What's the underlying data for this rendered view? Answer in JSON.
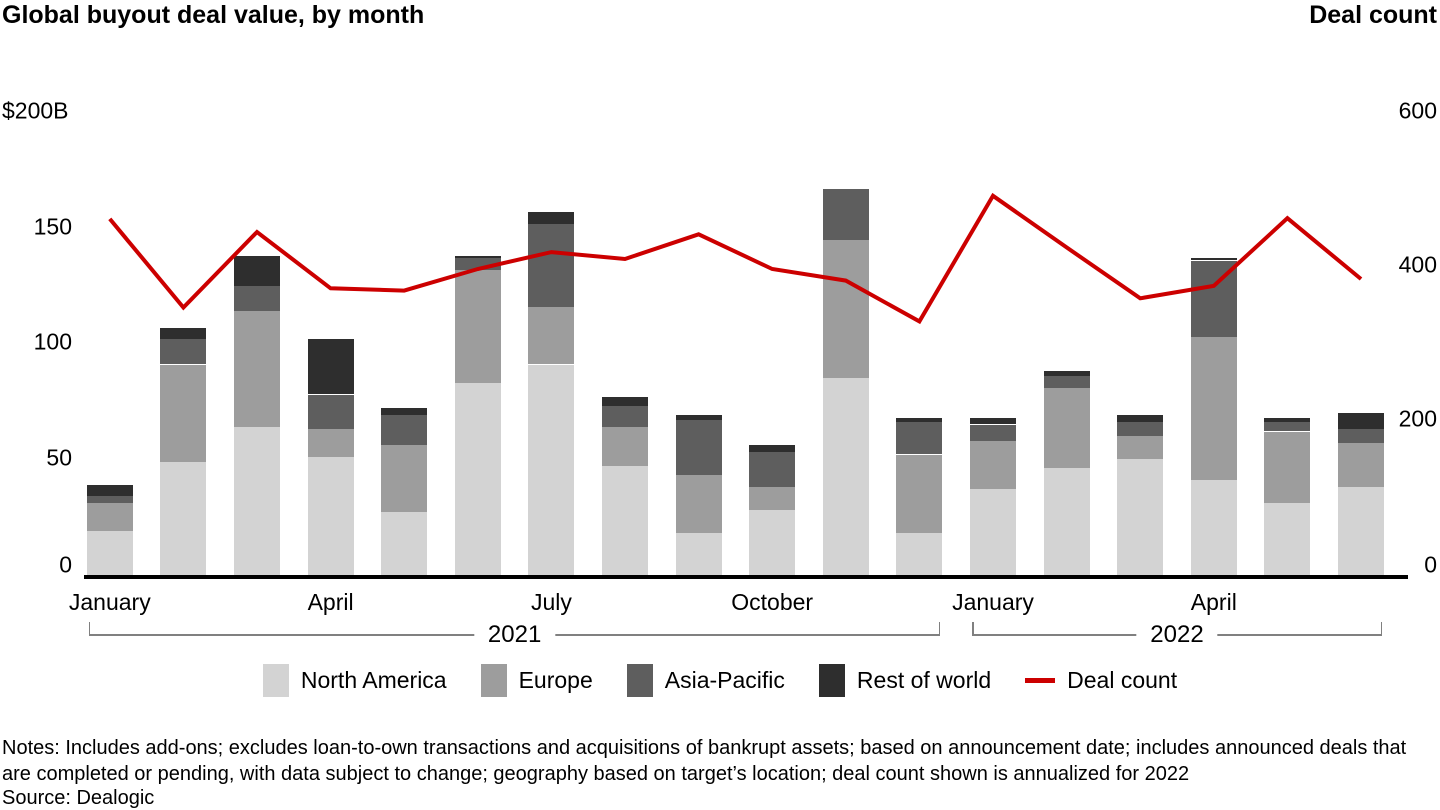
{
  "header": {
    "title": "Global buyout deal value, by month",
    "right_axis_title": "Deal count"
  },
  "left_axis": {
    "unit_label": "$200B",
    "unit_value": 200,
    "ticks": [
      150,
      100,
      50,
      0
    ]
  },
  "right_axis": {
    "ticks": [
      600,
      400,
      200,
      0
    ]
  },
  "x_axis": {
    "tick_labels": [
      {
        "slot": 0,
        "label": "January"
      },
      {
        "slot": 3,
        "label": "April"
      },
      {
        "slot": 6,
        "label": "July"
      },
      {
        "slot": 9,
        "label": "October"
      },
      {
        "slot": 12,
        "label": "January"
      },
      {
        "slot": 15,
        "label": "April"
      }
    ],
    "year_brackets": [
      {
        "label": "2021",
        "from_slot": 0,
        "to_slot": 11
      },
      {
        "label": "2022",
        "from_slot": 12,
        "to_slot": 17
      }
    ]
  },
  "palette": {
    "north_america": "#d3d3d3",
    "europe": "#9d9d9d",
    "asia_pacific": "#5e5e5e",
    "rest_of_world": "#2e2e2e",
    "deal_count_line": "#cc0000",
    "axis_line": "#000000",
    "bracket": "#808080"
  },
  "chart_data": {
    "type": "bar",
    "subtype": "stacked-bars-with-line-overlay",
    "title": "Global buyout deal value, by month",
    "ylabel_left": "$200B",
    "ylabel_right": "Deal count",
    "ylim_left": [
      0,
      200
    ],
    "ylim_right": [
      0,
      600
    ],
    "grid": false,
    "legend_position": "bottom-center",
    "categories": [
      "Jan 2021",
      "Feb 2021",
      "Mar 2021",
      "Apr 2021",
      "May 2021",
      "Jun 2021",
      "Jul 2021",
      "Aug 2021",
      "Sep 2021",
      "Oct 2021",
      "Nov 2021",
      "Dec 2021",
      "Jan 2022",
      "Feb 2022",
      "Mar 2022",
      "Apr 2022",
      "May 2022",
      "Jun 2022"
    ],
    "series": [
      {
        "name": "North America",
        "color": "#d3d3d3",
        "values": [
          20,
          50,
          65,
          52,
          28,
          84,
          92,
          48,
          19,
          29,
          86,
          19,
          38,
          47,
          51,
          42,
          32,
          39
        ]
      },
      {
        "name": "Europe",
        "color": "#9d9d9d",
        "values": [
          12,
          42,
          50,
          12,
          29,
          49,
          25,
          17,
          25,
          10,
          60,
          34,
          21,
          35,
          10,
          62,
          31,
          19
        ]
      },
      {
        "name": "Asia-Pacific",
        "color": "#5e5e5e",
        "values": [
          3,
          11,
          11,
          15,
          13,
          5,
          36,
          9,
          24,
          15,
          22,
          14,
          7,
          5,
          6,
          33,
          4,
          6
        ]
      },
      {
        "name": "Rest of world",
        "color": "#2e2e2e",
        "values": [
          5,
          5,
          13,
          24,
          3,
          1,
          5,
          4,
          2,
          3,
          0,
          2,
          3,
          2,
          3,
          1,
          2,
          7
        ]
      }
    ],
    "line_series": {
      "name": "Deal count",
      "color": "#cc0000",
      "axis": "right",
      "values": [
        465,
        350,
        448,
        375,
        372,
        400,
        422,
        413,
        445,
        400,
        385,
        332,
        495,
        428,
        362,
        378,
        466,
        387
      ]
    }
  },
  "notes": "Notes: Includes add-ons; excludes loan-to-own transactions and acquisitions of bankrupt assets; based on announcement date; includes announced deals that are completed or pending, with data subject to change; geography based on target’s location; deal count shown is annualized for 2022",
  "source": "Source: Dealogic"
}
